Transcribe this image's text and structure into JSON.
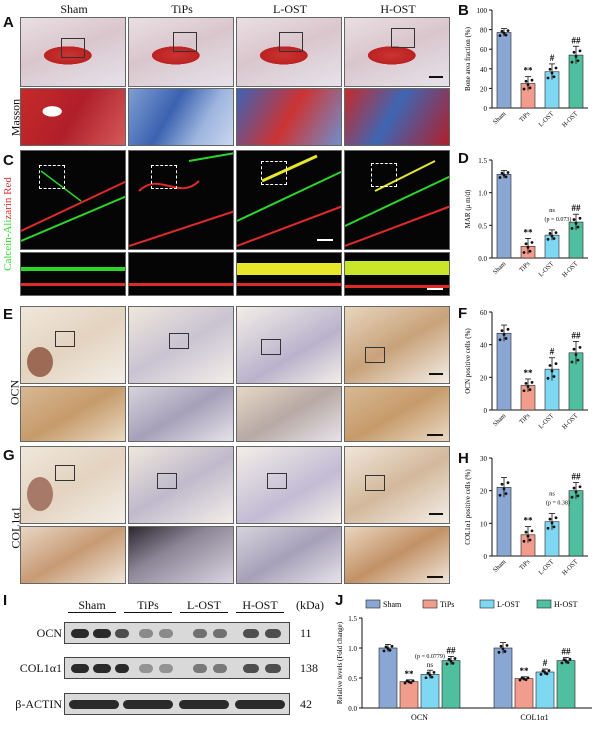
{
  "columns": [
    "Sham",
    "TiPs",
    "L-OST",
    "H-OST"
  ],
  "panel_letters": [
    "A",
    "B",
    "C",
    "D",
    "E",
    "F",
    "G",
    "H",
    "I",
    "J"
  ],
  "row_labels": {
    "masson": "Masson",
    "fluor": "Calcein-Alizarin Red",
    "ocn": "OCN",
    "col": "COL1α1"
  },
  "colors": {
    "sham": "#8aa6d3",
    "tips": "#f29c8d",
    "lost": "#7fd8f2",
    "host": "#4fbf9f",
    "calcein": "#2bd62b",
    "alizarin": "#e02a2a"
  },
  "charts": {
    "B": {
      "ylabel": "Bone area fraction (%)",
      "ylim": [
        0,
        100
      ],
      "yticks": [
        "0",
        "20",
        "40",
        "60",
        "80",
        "100"
      ],
      "categories": [
        "Sham",
        "TiPs",
        "L-OST",
        "H-OST"
      ],
      "values": [
        77,
        25,
        37,
        54
      ],
      "errors": [
        4,
        7,
        8,
        9
      ],
      "annotations": [
        "",
        "**",
        "#",
        "##"
      ]
    },
    "D": {
      "ylabel": "MAR (μ m/d)",
      "ylim": [
        0,
        1.5
      ],
      "yticks": [
        "0.0",
        "0.5",
        "1.0",
        "1.5"
      ],
      "categories": [
        "Sham",
        "TiPs",
        "L-OST",
        "H-OST"
      ],
      "values": [
        1.28,
        0.18,
        0.35,
        0.55
      ],
      "errors": [
        0.06,
        0.12,
        0.08,
        0.12
      ],
      "annotations": [
        "",
        "**",
        "",
        "##"
      ],
      "comparison": {
        "label": "ns",
        "p": "(p = 0.073)"
      }
    },
    "F": {
      "ylabel": "OCN positive cells (%)",
      "ylim": [
        0,
        60
      ],
      "yticks": [
        "0",
        "20",
        "40",
        "60"
      ],
      "categories": [
        "Sham",
        "TiPs",
        "L-OST",
        "H-OST"
      ],
      "values": [
        47,
        15,
        25,
        35
      ],
      "errors": [
        5,
        4,
        7,
        7
      ],
      "annotations": [
        "",
        "**",
        "#",
        "##"
      ]
    },
    "H": {
      "ylabel": "COL1α1 positive cells (%)",
      "ylim": [
        0,
        30
      ],
      "yticks": [
        "0",
        "10",
        "20",
        "30"
      ],
      "categories": [
        "Sham",
        "TiPs",
        "L-OST",
        "H-OST"
      ],
      "values": [
        21,
        6.5,
        10.5,
        20
      ],
      "errors": [
        3,
        2.5,
        2.5,
        2.5
      ],
      "annotations": [
        "",
        "**",
        "",
        "##"
      ],
      "comparison": {
        "label": "ns",
        "p": "(p = 0.38)"
      }
    },
    "J": {
      "ylabel": "Relative levels (Fold change)",
      "ylim": [
        0,
        1.5
      ],
      "yticks": [
        "0.0",
        "0.5",
        "1.0",
        "1.5"
      ],
      "groups": [
        "OCN",
        "COL1α1"
      ],
      "legend": [
        "Sham",
        "TiPs",
        "L-OST",
        "H-OST"
      ],
      "series": [
        {
          "name": "Sham",
          "values": [
            1.0,
            1.0
          ],
          "errors": [
            0.06,
            0.09
          ]
        },
        {
          "name": "TiPs",
          "values": [
            0.44,
            0.49
          ],
          "errors": [
            0.03,
            0.03
          ]
        },
        {
          "name": "L-OST",
          "values": [
            0.56,
            0.6
          ],
          "errors": [
            0.07,
            0.05
          ]
        },
        {
          "name": "H-OST",
          "values": [
            0.79,
            0.79
          ],
          "errors": [
            0.07,
            0.05
          ]
        }
      ],
      "annotations": [
        [
          "",
          "**",
          "ns",
          "##"
        ],
        [
          "",
          "**",
          "#",
          "##"
        ]
      ],
      "comparison_p": "(p = 0.0779)"
    }
  },
  "western": {
    "groups": [
      "Sham",
      "TiPs",
      "L-OST",
      "H-OST"
    ],
    "kda_header": "(kDa)",
    "rows": [
      {
        "name": "OCN",
        "kda": "11"
      },
      {
        "name": "COL1α1",
        "kda": "138"
      },
      {
        "name": "β-ACTIN",
        "kda": "42"
      }
    ]
  }
}
